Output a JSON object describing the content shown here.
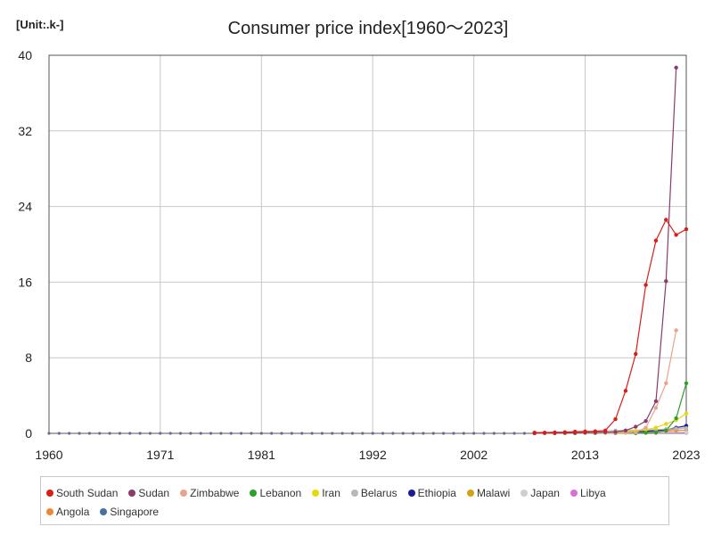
{
  "header": {
    "unit": "[Unit:.k-]",
    "title": "Consumer price index[1960～2023]"
  },
  "chart_data": {
    "type": "line",
    "title": "Consumer price index[1960～2023]",
    "unit": "[Unit:.k-]",
    "xlabel": "",
    "ylabel": "",
    "xlim": [
      1960,
      2023
    ],
    "ylim": [
      0,
      40
    ],
    "x_ticks": [
      1960,
      1971,
      1981,
      1992,
      2002,
      2013,
      2023
    ],
    "y_ticks": [
      0,
      8,
      16,
      24,
      32,
      40
    ],
    "grid": true,
    "legend_position": "bottom",
    "series": [
      {
        "name": "South Sudan",
        "color": "#d91e18",
        "x": [
          2008,
          2009,
          2010,
          2011,
          2012,
          2013,
          2014,
          2015,
          2016,
          2017,
          2018,
          2019,
          2020,
          2021,
          2022,
          2023
        ],
        "y": [
          0.06,
          0.08,
          0.1,
          0.12,
          0.18,
          0.2,
          0.22,
          0.3,
          1.5,
          4.5,
          8.4,
          15.7,
          20.4,
          22.6,
          21.0,
          21.6
        ]
      },
      {
        "name": "Sudan",
        "color": "#8b3a6b",
        "x": [
          2008,
          2009,
          2010,
          2011,
          2012,
          2013,
          2014,
          2015,
          2016,
          2017,
          2018,
          2019,
          2020,
          2021,
          2022
        ],
        "y": [
          0.02,
          0.03,
          0.03,
          0.04,
          0.06,
          0.08,
          0.1,
          0.12,
          0.15,
          0.3,
          0.7,
          1.3,
          3.4,
          16.1,
          38.7
        ]
      },
      {
        "name": "Zimbabwe",
        "color": "#e8a58c",
        "x": [
          2008,
          2009,
          2010,
          2011,
          2012,
          2013,
          2014,
          2015,
          2016,
          2017,
          2018,
          2019,
          2020,
          2021,
          2022
        ],
        "y": [
          0.02,
          0.03,
          0.03,
          0.04,
          0.04,
          0.04,
          0.04,
          0.04,
          0.04,
          0.05,
          0.1,
          0.6,
          2.7,
          5.3,
          10.9
        ]
      },
      {
        "name": "Lebanon",
        "color": "#2ca02c",
        "x": [
          2008,
          2010,
          2012,
          2014,
          2016,
          2018,
          2019,
          2020,
          2021,
          2022,
          2023
        ],
        "y": [
          0.01,
          0.01,
          0.01,
          0.01,
          0.01,
          0.02,
          0.05,
          0.1,
          0.3,
          1.6,
          5.3
        ]
      },
      {
        "name": "Iran",
        "color": "#e6d80f",
        "x": [
          2008,
          2010,
          2012,
          2014,
          2016,
          2017,
          2018,
          2019,
          2020,
          2021,
          2022,
          2023
        ],
        "y": [
          0.04,
          0.05,
          0.08,
          0.12,
          0.15,
          0.18,
          0.25,
          0.4,
          0.6,
          1.0,
          1.4,
          2.1
        ]
      },
      {
        "name": "Belarus",
        "color": "#b8b8b8",
        "x": [
          2008,
          2012,
          2016,
          2020,
          2021,
          2022,
          2023
        ],
        "y": [
          0.05,
          0.12,
          0.3,
          0.4,
          0.45,
          0.5,
          0.55
        ]
      },
      {
        "name": "Ethiopia",
        "color": "#1a1a9c",
        "x": [
          2008,
          2012,
          2016,
          2019,
          2020,
          2021,
          2022,
          2023
        ],
        "y": [
          0.03,
          0.06,
          0.12,
          0.2,
          0.3,
          0.4,
          0.6,
          0.8
        ]
      },
      {
        "name": "Malawi",
        "color": "#d4a017",
        "x": [
          2008,
          2012,
          2016,
          2019,
          2020,
          2021,
          2022,
          2023
        ],
        "y": [
          0.02,
          0.05,
          0.15,
          0.25,
          0.3,
          0.35,
          0.45,
          0.6
        ]
      },
      {
        "name": "Japan",
        "color": "#cfcfcf",
        "x": [
          2008,
          2012,
          2016,
          2020,
          2023
        ],
        "y": [
          0.1,
          0.1,
          0.1,
          0.1,
          0.11
        ]
      },
      {
        "name": "Libya",
        "color": "#da70d6",
        "x": [
          2008,
          2012,
          2016,
          2020,
          2023
        ],
        "y": [
          0.01,
          0.02,
          0.03,
          0.04,
          0.05
        ]
      },
      {
        "name": "Angola",
        "color": "#e8893c",
        "x": [
          2008,
          2012,
          2016,
          2019,
          2020,
          2021,
          2022,
          2023
        ],
        "y": [
          0.02,
          0.03,
          0.08,
          0.15,
          0.2,
          0.25,
          0.3,
          0.35
        ]
      },
      {
        "name": "Singapore",
        "color": "#4a6f9c",
        "x": [
          2008,
          2012,
          2016,
          2020,
          2023
        ],
        "y": [
          0.09,
          0.1,
          0.1,
          0.1,
          0.11
        ]
      }
    ]
  }
}
